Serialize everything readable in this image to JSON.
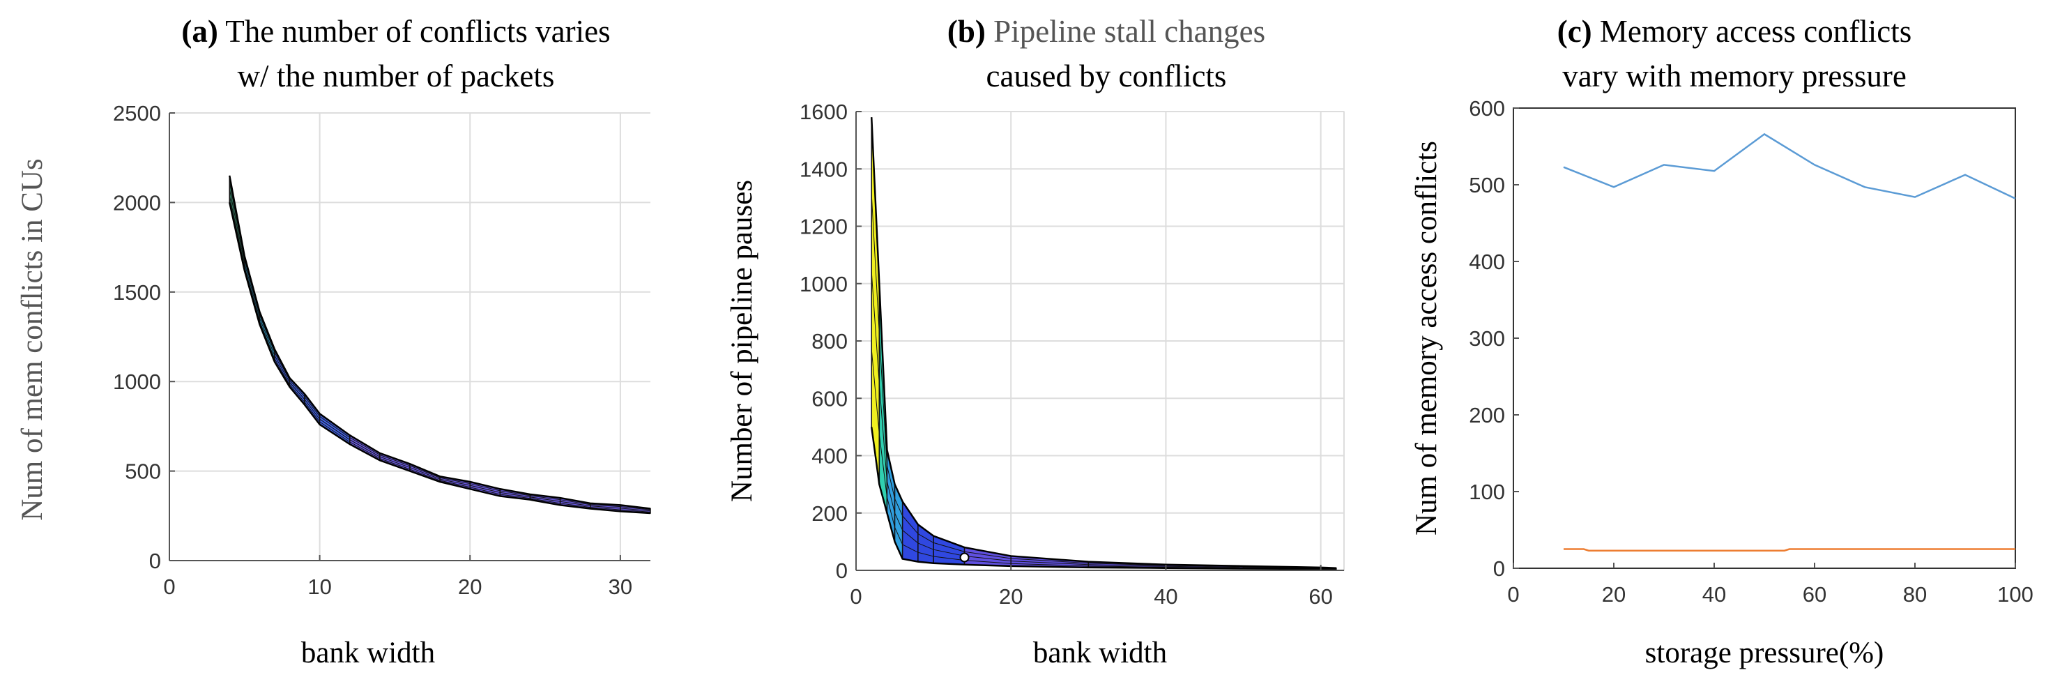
{
  "chart_data": [
    {
      "type": "surface",
      "panel": "(a)",
      "title": "The number of conflicts varies w/ the number of packets",
      "title_lines": [
        "The number of conflicts varies",
        "w/ the number of packets"
      ],
      "xlabel": "bank width",
      "ylabel": "Num of mem conflicts in CUs",
      "xlim": [
        0,
        32
      ],
      "ylim": [
        0,
        2500
      ],
      "xticks": [
        0,
        10,
        20,
        30
      ],
      "yticks": [
        0,
        500,
        1000,
        1500,
        2000,
        2500
      ],
      "grid": true,
      "x": [
        4,
        5,
        6,
        7,
        8,
        9,
        10,
        12,
        14,
        16,
        18,
        20,
        22,
        24,
        26,
        28,
        30,
        32
      ],
      "series": [
        {
          "values": [
            2150,
            1700,
            1390,
            1180,
            1020,
            930,
            820,
            700,
            600,
            540,
            470,
            440,
            400,
            370,
            350,
            320,
            310,
            290
          ]
        },
        {
          "values": [
            2000,
            1620,
            1320,
            1110,
            970,
            870,
            760,
            650,
            560,
            500,
            440,
            400,
            360,
            340,
            310,
            290,
            275,
            265
          ]
        }
      ],
      "colors": [
        "#f0e020",
        "#3a9070",
        "#30a0d0",
        "#4060e0",
        "#6a5ae0"
      ]
    },
    {
      "type": "surface",
      "panel": "(b)",
      "title": "Pipeline stall changes caused by conflicts",
      "title_lines": [
        "Pipeline stall changes",
        "caused by conflicts"
      ],
      "xlabel": "bank width",
      "ylabel": "Number of pipeline pauses",
      "xlim": [
        0,
        63
      ],
      "ylim": [
        0,
        1600
      ],
      "xticks": [
        0,
        20,
        40,
        60
      ],
      "yticks": [
        0,
        200,
        400,
        600,
        800,
        1000,
        1200,
        1400,
        1600
      ],
      "grid": true,
      "x": [
        2,
        3,
        4,
        5,
        6,
        8,
        10,
        14,
        20,
        30,
        40,
        50,
        60,
        62
      ],
      "series": [
        {
          "values": [
            1580,
            1000,
            420,
            300,
            240,
            160,
            120,
            80,
            50,
            30,
            20,
            15,
            10,
            8
          ]
        },
        {
          "values": [
            500,
            300,
            200,
            100,
            40,
            30,
            25,
            20,
            15,
            10,
            8,
            6,
            5,
            4
          ]
        }
      ],
      "colors": [
        "#f0f020",
        "#30d0b0",
        "#30a0e0",
        "#3048e0",
        "#6050e0"
      ]
    },
    {
      "type": "line",
      "panel": "(c)",
      "title": "Memory access conflicts vary with memory pressure",
      "title_lines": [
        "Memory access conflicts",
        "vary with memory pressure"
      ],
      "xlabel": "storage pressure(%)",
      "ylabel": "Num of memory access conflicts",
      "xlim": [
        0,
        100
      ],
      "ylim": [
        0,
        600
      ],
      "xticks": [
        0,
        20,
        40,
        60,
        80,
        100
      ],
      "yticks": [
        0,
        100,
        200,
        300,
        400,
        500,
        600
      ],
      "grid": false,
      "series": [
        {
          "color": "#5b9bd5",
          "x": [
            10,
            20,
            30,
            40,
            50,
            60,
            70,
            80,
            90,
            100
          ],
          "values": [
            523,
            497,
            526,
            518,
            566,
            526,
            497,
            484,
            513,
            482
          ]
        },
        {
          "color": "#ed7d31",
          "x": [
            10,
            14,
            15,
            30,
            54,
            55,
            70,
            100
          ],
          "values": [
            25,
            25,
            23,
            23,
            23,
            25,
            25,
            25
          ]
        }
      ]
    }
  ]
}
